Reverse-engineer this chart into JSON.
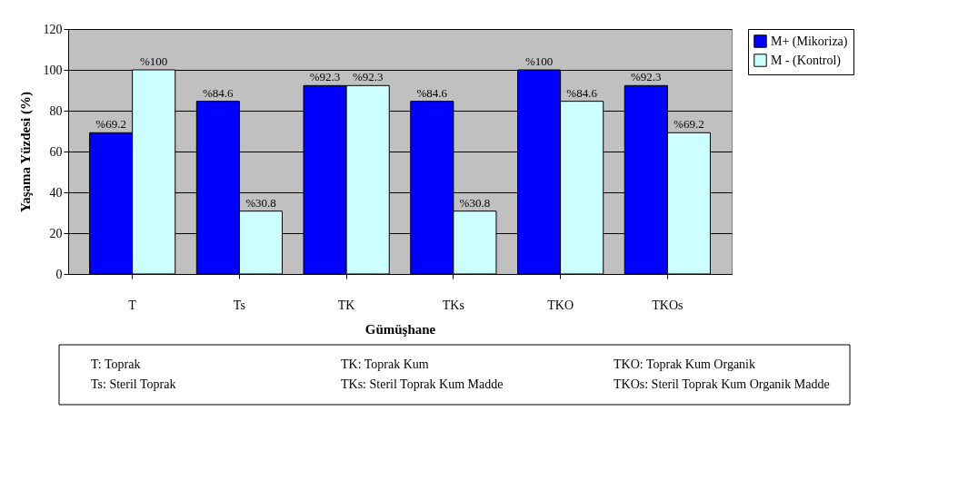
{
  "chart_data": {
    "type": "bar",
    "xlabel": "Gümüşhane",
    "ylabel": "Yaşama Yüzdesi (%)",
    "categories": [
      "T",
      "Ts",
      "TK",
      "TKs",
      "TKO",
      "TKOs"
    ],
    "series": [
      {
        "name": "M+ (Mikoriza)",
        "color": "#0000ff",
        "values": [
          69.2,
          84.6,
          92.3,
          84.6,
          100,
          92.3
        ],
        "value_labels": [
          "%69.2",
          "%84.6",
          "%92.3",
          "%84.6",
          "%100",
          "%92.3"
        ]
      },
      {
        "name": "M - (Kontrol)",
        "color": "#ccffff",
        "values": [
          100,
          30.8,
          92.3,
          30.8,
          84.6,
          69.2
        ],
        "value_labels": [
          "%100",
          "%30.8",
          "%92.3",
          "%30.8",
          "%84.6",
          "%69.2"
        ]
      }
    ],
    "ylim": [
      0,
      120
    ],
    "yticks": [
      0,
      20,
      40,
      60,
      80,
      100,
      120
    ],
    "grid": "y",
    "legend": "right",
    "annotations": [
      "T: Toprak",
      "TK: Toprak Kum",
      "TKO: Toprak Kum Organik",
      "Ts: Steril Toprak",
      "TKs: Steril Toprak Kum Madde",
      "TKOs: Steril Toprak Kum Organik Madde"
    ]
  }
}
